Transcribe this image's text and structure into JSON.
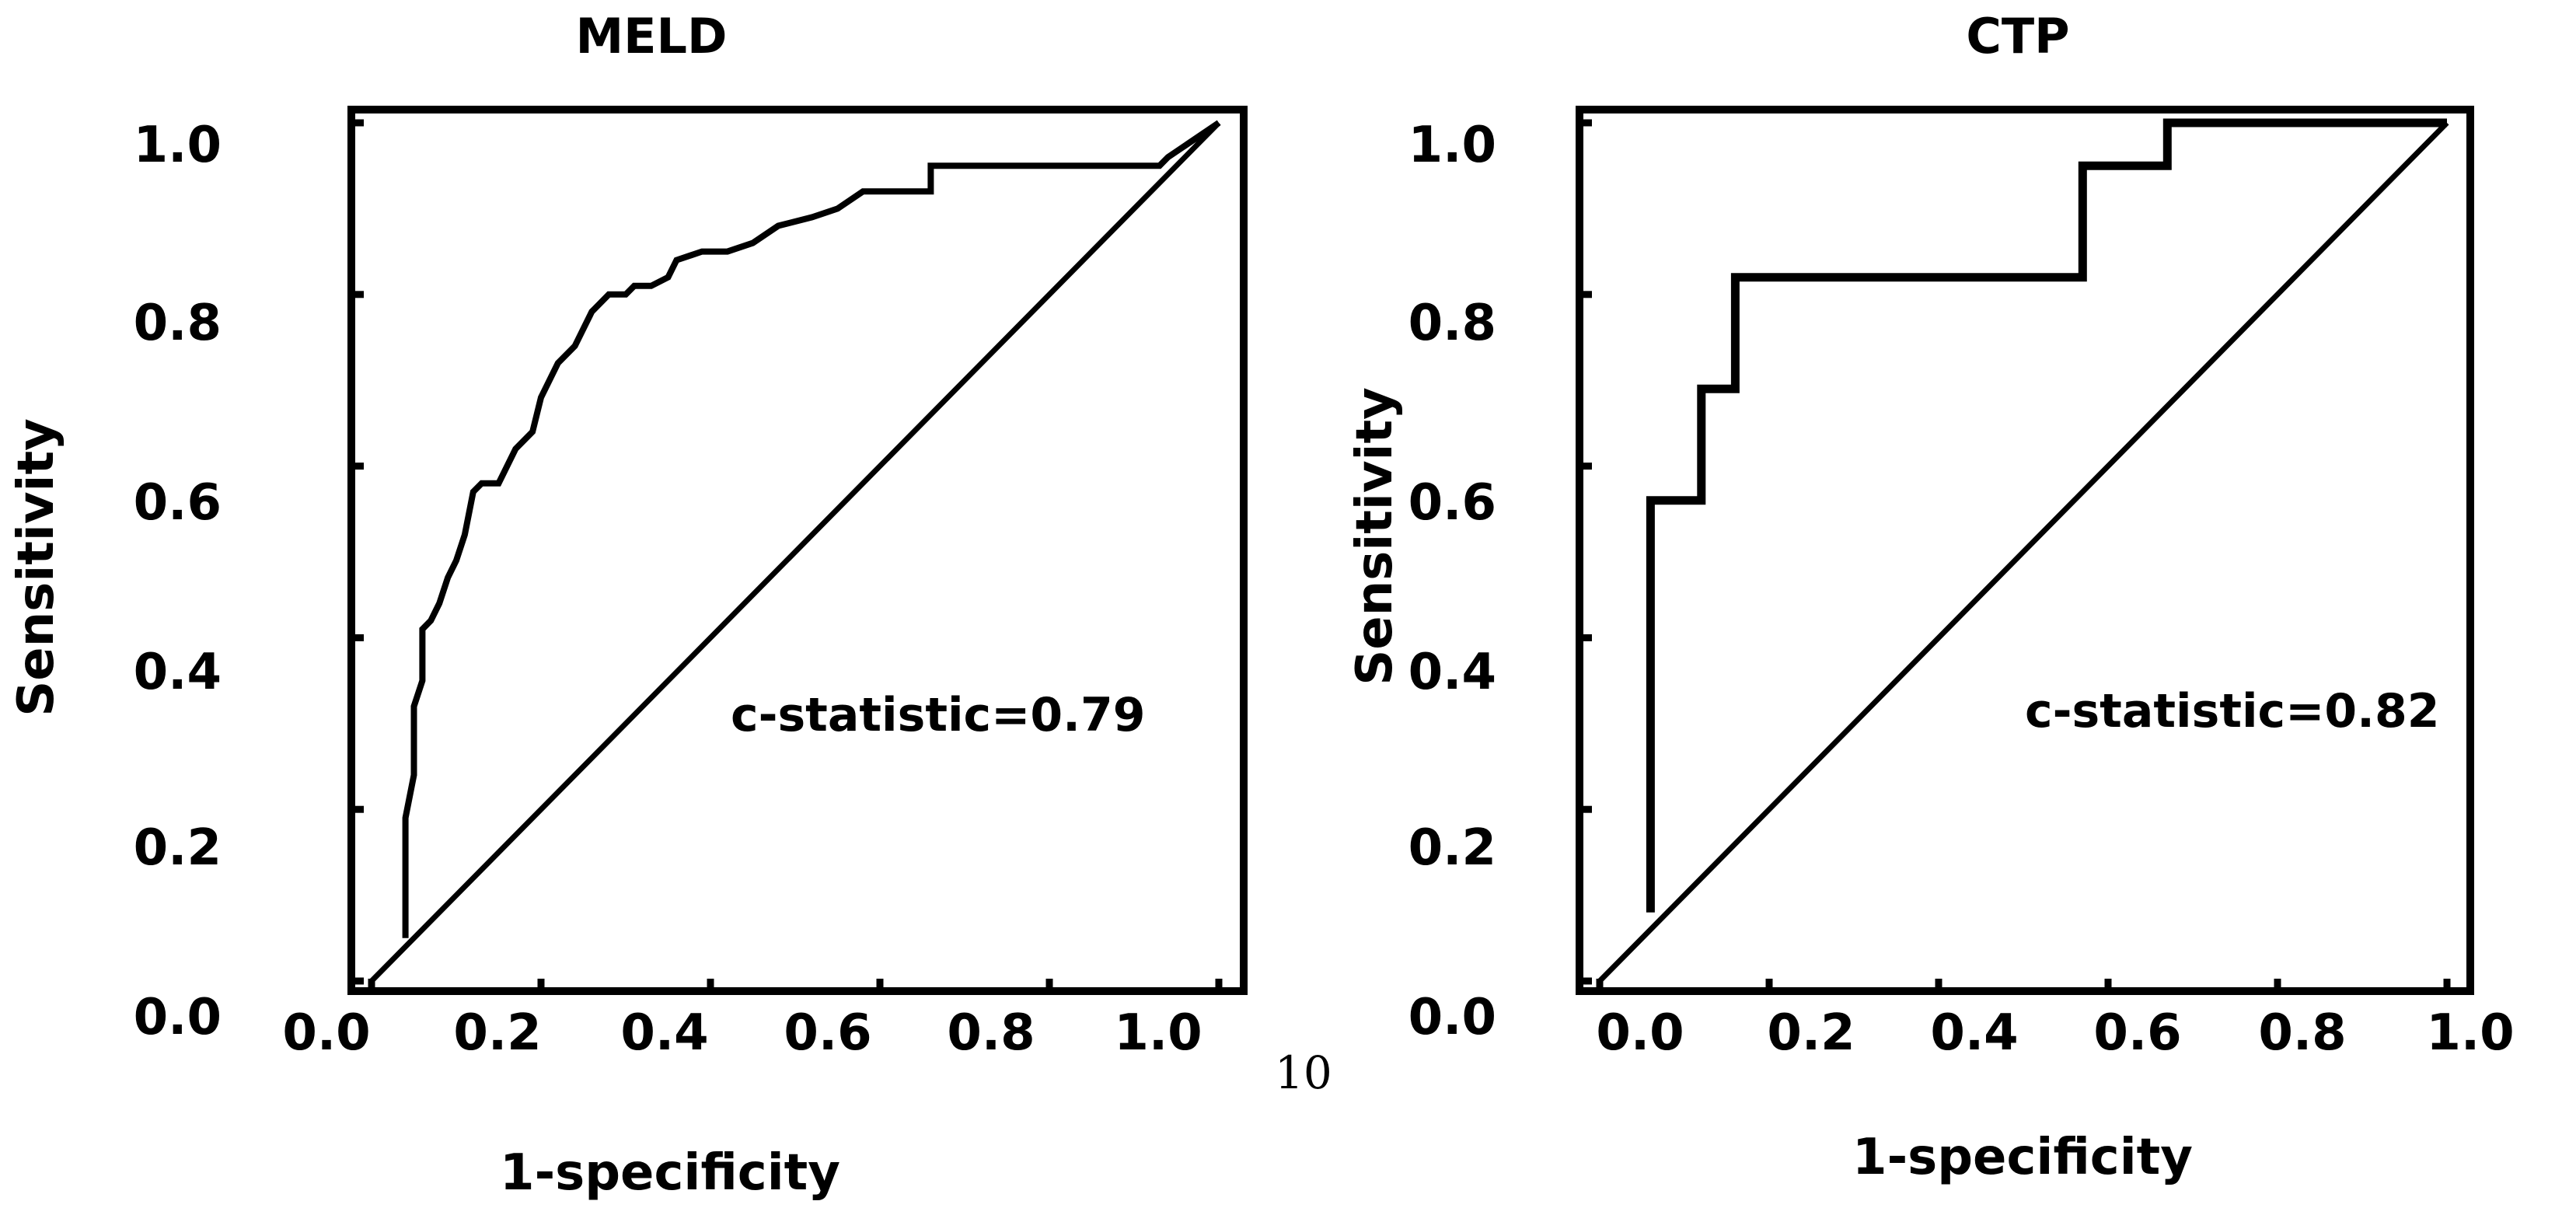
{
  "chart_data": [
    {
      "type": "line",
      "title": "MELD",
      "xlabel": "1-specificity",
      "ylabel": "Sensitivity",
      "xlim": [
        0,
        1
      ],
      "ylim": [
        0,
        1
      ],
      "x_ticks": [
        "0.0",
        "0.2",
        "0.4",
        "0.6",
        "0.8",
        "1.0"
      ],
      "y_ticks": [
        "0.0",
        "0.2",
        "0.4",
        "0.6",
        "0.8",
        "1.0"
      ],
      "annotation": "c-statistic=0.79",
      "extra_label": "10",
      "grid": false,
      "series": [
        {
          "x": [
            0.04,
            0.04,
            0.05,
            0.05,
            0.06,
            0.06,
            0.07,
            0.08,
            0.09,
            0.1,
            0.11,
            0.12,
            0.13,
            0.15,
            0.17,
            0.19,
            0.2,
            0.22,
            0.24,
            0.26,
            0.28,
            0.3,
            0.31,
            0.33,
            0.35,
            0.36,
            0.39,
            0.42,
            0.45,
            0.48,
            0.52,
            0.55,
            0.58,
            0.63,
            0.66,
            0.66,
            0.9,
            0.93,
            0.94,
            1.0
          ],
          "y": [
            0.05,
            0.19,
            0.24,
            0.32,
            0.35,
            0.41,
            0.42,
            0.44,
            0.47,
            0.49,
            0.52,
            0.57,
            0.58,
            0.58,
            0.62,
            0.64,
            0.68,
            0.72,
            0.74,
            0.78,
            0.8,
            0.8,
            0.81,
            0.81,
            0.82,
            0.84,
            0.85,
            0.85,
            0.86,
            0.88,
            0.89,
            0.9,
            0.92,
            0.92,
            0.92,
            0.95,
            0.95,
            0.95,
            0.96,
            1.0
          ]
        },
        {
          "x": [
            0,
            1
          ],
          "y": [
            0,
            1
          ]
        }
      ]
    },
    {
      "type": "line",
      "title": "CTP",
      "xlabel": "1-specificity",
      "ylabel": "Sensitivity",
      "xlim": [
        0,
        1
      ],
      "ylim": [
        0,
        1
      ],
      "x_ticks": [
        "0.0",
        "0.2",
        "0.4",
        "0.6",
        "0.8",
        "1.0"
      ],
      "y_ticks": [
        "0.0",
        "0.2",
        "0.4",
        "0.6",
        "0.8",
        "1.0"
      ],
      "annotation": "c-statistic=0.82",
      "grid": false,
      "series": [
        {
          "x": [
            0.06,
            0.06,
            0.12,
            0.12,
            0.16,
            0.16,
            0.57,
            0.57,
            0.67,
            0.67,
            1.0
          ],
          "y": [
            0.08,
            0.56,
            0.56,
            0.69,
            0.69,
            0.82,
            0.82,
            0.95,
            0.95,
            1.0,
            1.0
          ]
        },
        {
          "x": [
            0,
            1
          ],
          "y": [
            0,
            1
          ]
        }
      ]
    }
  ]
}
